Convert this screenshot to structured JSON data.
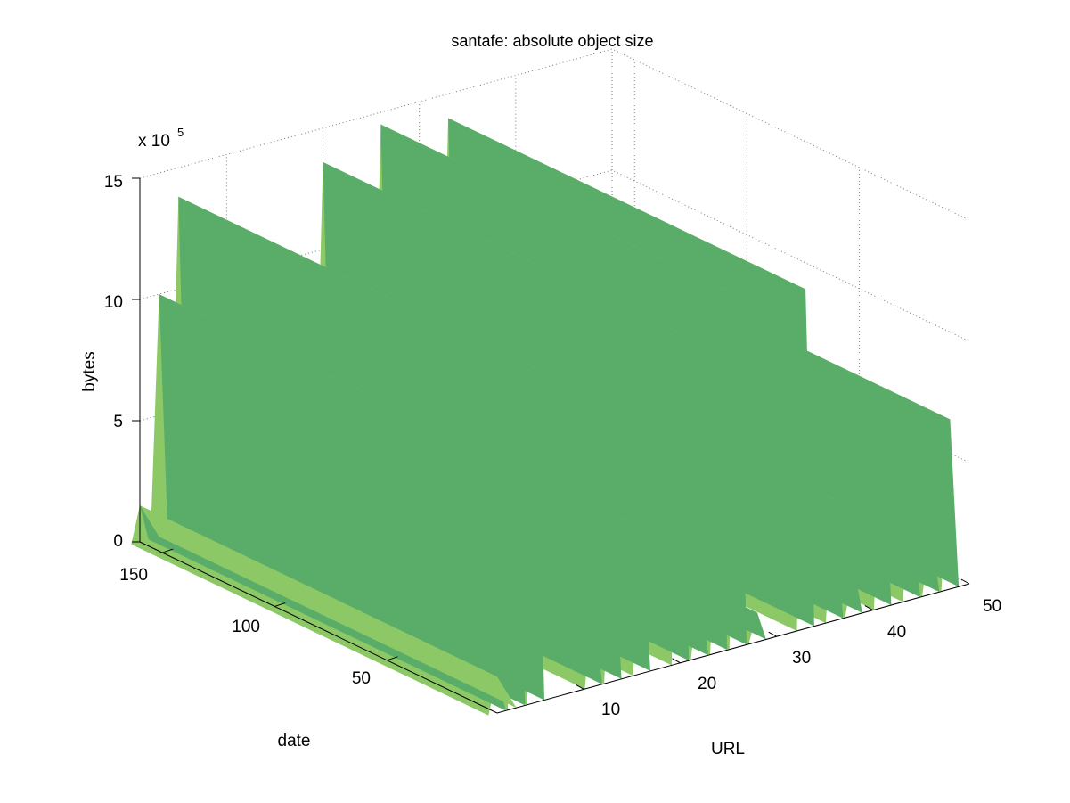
{
  "figure": {
    "background": "#ffffff",
    "surface_color": "#5aad68",
    "surface_highlight": "#8cc866",
    "axis_color": "#000000",
    "grid_color": "#7a7a7a"
  },
  "chart_data": {
    "type": "surface3d",
    "title": "santafe: absolute object size",
    "xlabel": "URL",
    "ylabel": "date",
    "zlabel": "bytes",
    "z_multiplier": "x 10",
    "z_multiplier_exponent": "5",
    "x_ticks": [
      "10",
      "20",
      "30",
      "40",
      "50"
    ],
    "y_ticks": [
      "50",
      "100",
      "150"
    ],
    "z_ticks": [
      "0",
      "5",
      "10",
      "15"
    ],
    "xlim": [
      1,
      50
    ],
    "ylim": [
      1,
      160
    ],
    "zlim": [
      0,
      1500000
    ],
    "grid": true,
    "series": [
      {
        "url": 1,
        "value": 150000
      },
      {
        "url": 3,
        "value": 1000000
      },
      {
        "url": 5,
        "value": 1380000
      },
      {
        "url": 11,
        "value": 380000
      },
      {
        "url": 13,
        "value": 700000
      },
      {
        "url": 16,
        "value": 600000
      },
      {
        "url": 20,
        "value": 1360000
      },
      {
        "url": 22,
        "value": 300000
      },
      {
        "url": 24,
        "value": 700000
      },
      {
        "url": 26,
        "value": 1450000
      },
      {
        "url": 28,
        "value": 120000
      },
      {
        "url": 33,
        "value": 1400000
      },
      {
        "url": 36,
        "value": 500000
      },
      {
        "url": 38,
        "value": 200000
      },
      {
        "url": 41,
        "value": 750000
      },
      {
        "url": 44,
        "value": 500000
      },
      {
        "url": 46,
        "value": 250000
      },
      {
        "url": 48,
        "value": 700000
      }
    ]
  }
}
